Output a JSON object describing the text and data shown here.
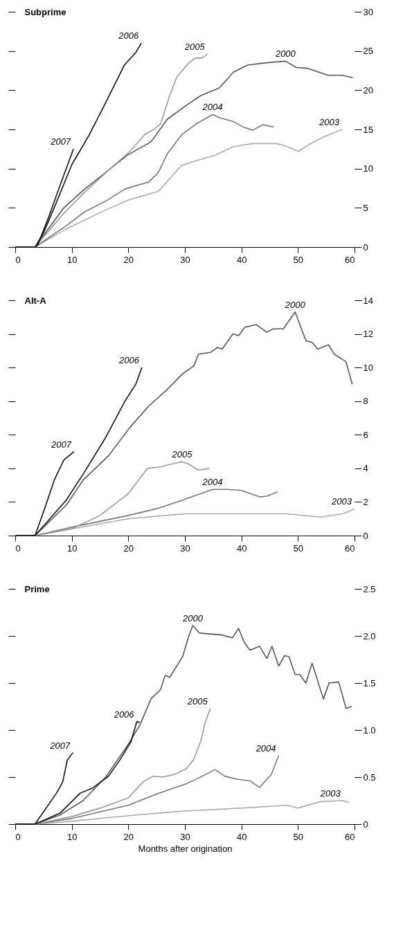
{
  "chart_data": [
    {
      "type": "line",
      "title": "Subprime",
      "xlim": [
        0,
        60
      ],
      "xticks": [
        0,
        10,
        20,
        30,
        40,
        50,
        60
      ],
      "ylim": [
        0,
        30
      ],
      "yticks": [
        0,
        5,
        10,
        15,
        20,
        25,
        30
      ],
      "series": [
        {
          "name": "2000",
          "color": "#555555",
          "x": [
            0,
            3.5,
            8.6,
            12.3,
            16.5,
            19.8,
            24,
            26.9,
            30.3,
            32.8,
            36.1,
            38.6,
            41.1,
            44.5,
            47.8,
            49.7,
            51.6,
            55.3,
            57.8,
            59.7
          ],
          "values": [
            0,
            0,
            5,
            7.4,
            9.8,
            11.7,
            13.4,
            16.3,
            18.1,
            19.3,
            20.3,
            22.3,
            23.2,
            23.5,
            23.7,
            22.9,
            22.8,
            21.9,
            21.9,
            21.6
          ]
        },
        {
          "name": "2003",
          "color": "#aaaaaa",
          "x": [
            0,
            3.5,
            9,
            15,
            20,
            25.3,
            29.4,
            32,
            35.3,
            38.6,
            42,
            46.1,
            47.8,
            50.1,
            52,
            54.5,
            57.8
          ],
          "values": [
            0,
            0,
            2.3,
            4.4,
            6,
            7.1,
            10.4,
            11,
            11.7,
            12.8,
            13.2,
            13.2,
            12.9,
            12.2,
            13.1,
            14,
            15
          ]
        },
        {
          "name": "2004",
          "color": "#777777",
          "x": [
            0,
            3.5,
            9,
            12.3,
            16.1,
            19.4,
            23.6,
            25.3,
            26.9,
            29.4,
            32,
            34.9,
            36.1,
            38.6,
            40.3,
            42,
            43.8,
            45.7
          ],
          "values": [
            0,
            0,
            2.7,
            4.5,
            5.9,
            7.4,
            8.3,
            9.5,
            11.9,
            14.3,
            15.7,
            16.9,
            16.5,
            16,
            15.3,
            14.9,
            15.6,
            15.3
          ]
        },
        {
          "name": "2005",
          "color": "#999999",
          "x": [
            0,
            3.5,
            8.6,
            12.3,
            16.5,
            20,
            23,
            24.5,
            25.7,
            27.3,
            28.6,
            30.7,
            31.9,
            33,
            34
          ],
          "values": [
            0,
            0,
            4.3,
            7,
            9.8,
            12,
            14.4,
            15,
            15.7,
            19.3,
            21.7,
            23.5,
            24.1,
            24.1,
            24.6
          ]
        },
        {
          "name": "2006",
          "color": "#111111",
          "x": [
            0,
            3.5,
            5,
            7,
            10,
            13,
            15.5,
            19.3,
            21.3,
            22.3
          ],
          "values": [
            0,
            0,
            1.8,
            5.2,
            10.5,
            14.2,
            17.7,
            23.2,
            24.8,
            26
          ]
        },
        {
          "name": "2007",
          "color": "#111111",
          "x": [
            0,
            3.5,
            4,
            6,
            8,
            10.3
          ],
          "values": [
            0,
            0,
            0.3,
            4,
            8,
            12.5
          ]
        }
      ]
    },
    {
      "type": "line",
      "title": "Alt-A",
      "xlim": [
        0,
        60
      ],
      "xticks": [
        0,
        10,
        20,
        30,
        40,
        50,
        60
      ],
      "ylim": [
        0,
        14
      ],
      "yticks": [
        0,
        2,
        4,
        6,
        8,
        10,
        12,
        14
      ],
      "series": [
        {
          "name": "2000",
          "color": "#555555",
          "x": [
            0,
            3.5,
            9,
            12,
            16.5,
            20.3,
            23.6,
            26.9,
            29.5,
            31.6,
            32.4,
            34.5,
            35.8,
            36.6,
            38.5,
            39.5,
            40.6,
            42.6,
            44.5,
            45.6,
            47.4,
            49.5,
            51.4,
            52.5,
            53.5,
            55.4,
            56.4,
            58.5,
            59.6
          ],
          "values": [
            0,
            0,
            1.8,
            3.3,
            4.75,
            6.45,
            7.7,
            8.7,
            9.6,
            10.1,
            10.8,
            10.9,
            11.2,
            11.1,
            12,
            11.9,
            12.4,
            12.55,
            12.1,
            12.3,
            12.3,
            13.3,
            11.6,
            11.5,
            11.1,
            11.35,
            10.8,
            10.35,
            9
          ]
        },
        {
          "name": "2003",
          "color": "#aaaaaa",
          "x": [
            0,
            3.5,
            10,
            20,
            30,
            40,
            48,
            54,
            58,
            60
          ],
          "values": [
            0,
            0,
            0.4,
            1,
            1.3,
            1.3,
            1.3,
            1.1,
            1.3,
            1.6
          ]
        },
        {
          "name": "2004",
          "color": "#777777",
          "x": [
            0,
            3.5,
            10,
            20,
            25,
            29.5,
            34.9,
            37.4,
            39.9,
            43.3,
            44.5,
            46.4
          ],
          "values": [
            0,
            0,
            0.5,
            1.2,
            1.6,
            2.1,
            2.75,
            2.75,
            2.7,
            2.3,
            2.35,
            2.6
          ]
        },
        {
          "name": "2005",
          "color": "#999999",
          "x": [
            0,
            3.5,
            10,
            15,
            20,
            23.4,
            25.7,
            29.5,
            30.7,
            32.4,
            34.3
          ],
          "values": [
            0,
            0,
            0.4,
            1.2,
            2.5,
            4,
            4.1,
            4.4,
            4.25,
            3.9,
            4
          ]
        },
        {
          "name": "2006",
          "color": "#111111",
          "x": [
            0,
            3.5,
            9,
            11.9,
            16.1,
            19.4,
            21.3,
            22.4
          ],
          "values": [
            0,
            0,
            2.1,
            3.6,
            5.9,
            8,
            9,
            10
          ]
        },
        {
          "name": "2007",
          "color": "#111111",
          "x": [
            0,
            3.5,
            5.2,
            6.1,
            6.9,
            8.6,
            10.4
          ],
          "values": [
            0,
            0,
            1.6,
            2.5,
            3.3,
            4.5,
            5
          ]
        }
      ]
    },
    {
      "type": "line",
      "title": "Prime",
      "xlabel": "Months after origination",
      "xlim": [
        0,
        60
      ],
      "xticks": [
        0,
        10,
        20,
        30,
        40,
        50,
        60
      ],
      "ylim": [
        0,
        2.5
      ],
      "yticks": [
        0,
        0.5,
        {
          "value": 1,
          "label": "1.0"
        },
        1.5,
        {
          "value": 2,
          "label": "2.0"
        },
        2.5
      ],
      "series": [
        {
          "name": "2000",
          "color": "#555555",
          "x": [
            0,
            3.5,
            8,
            12,
            16,
            20,
            22.1,
            24,
            25.7,
            26.5,
            27.3,
            29.6,
            30.7,
            31.4,
            32.6,
            36.5,
            38.4,
            39.5,
            40.5,
            41.5,
            43.2,
            44.5,
            45.4,
            46.6,
            47.6,
            48.4,
            49.5,
            50.3,
            51.4,
            52.5,
            54.5,
            55.5,
            57.2,
            58.5,
            59.5
          ],
          "values": [
            0,
            0,
            0.1,
            0.25,
            0.5,
            0.85,
            1.06,
            1.33,
            1.43,
            1.58,
            1.56,
            1.78,
            2,
            2.11,
            2.03,
            2.01,
            1.98,
            2.08,
            1.93,
            1.85,
            1.89,
            1.76,
            1.89,
            1.68,
            1.79,
            1.78,
            1.59,
            1.59,
            1.5,
            1.71,
            1.33,
            1.5,
            1.51,
            1.23,
            1.25
          ]
        },
        {
          "name": "2003",
          "color": "#aaaaaa",
          "x": [
            0,
            3.5,
            10,
            20,
            30,
            40,
            48,
            50,
            54,
            58,
            59
          ],
          "values": [
            0,
            0,
            0.03,
            0.09,
            0.14,
            0.17,
            0.2,
            0.17,
            0.24,
            0.25,
            0.23
          ]
        },
        {
          "name": "2004",
          "color": "#777777",
          "x": [
            0,
            3.5,
            10,
            20,
            25,
            30.3,
            32.4,
            35.3,
            37,
            39,
            41.5,
            43.2,
            45.3,
            46.6
          ],
          "values": [
            0,
            0,
            0.06,
            0.2,
            0.32,
            0.43,
            0.49,
            0.58,
            0.51,
            0.48,
            0.46,
            0.39,
            0.53,
            0.73
          ]
        },
        {
          "name": "2005",
          "color": "#999999",
          "x": [
            0,
            3.5,
            10,
            15,
            20,
            22.8,
            24.4,
            26.1,
            28.2,
            30.3,
            31.5,
            32.8,
            33.6,
            34.5
          ],
          "values": [
            0,
            0,
            0.08,
            0.17,
            0.28,
            0.46,
            0.51,
            0.5,
            0.53,
            0.59,
            0.68,
            0.88,
            1.08,
            1.23
          ]
        },
        {
          "name": "2006",
          "color": "#111111",
          "x": [
            0,
            3.5,
            8,
            11.5,
            13.6,
            16.5,
            18.6,
            20.5,
            21.5,
            22
          ],
          "values": [
            0,
            0,
            0.12,
            0.33,
            0.38,
            0.51,
            0.69,
            0.88,
            1.09,
            1.08
          ]
        },
        {
          "name": "2007",
          "color": "#111111",
          "x": [
            0,
            3.5,
            7.3,
            8.4,
            9.2,
            10.2
          ],
          "values": [
            0,
            0,
            0.33,
            0.45,
            0.68,
            0.76
          ]
        }
      ]
    }
  ]
}
